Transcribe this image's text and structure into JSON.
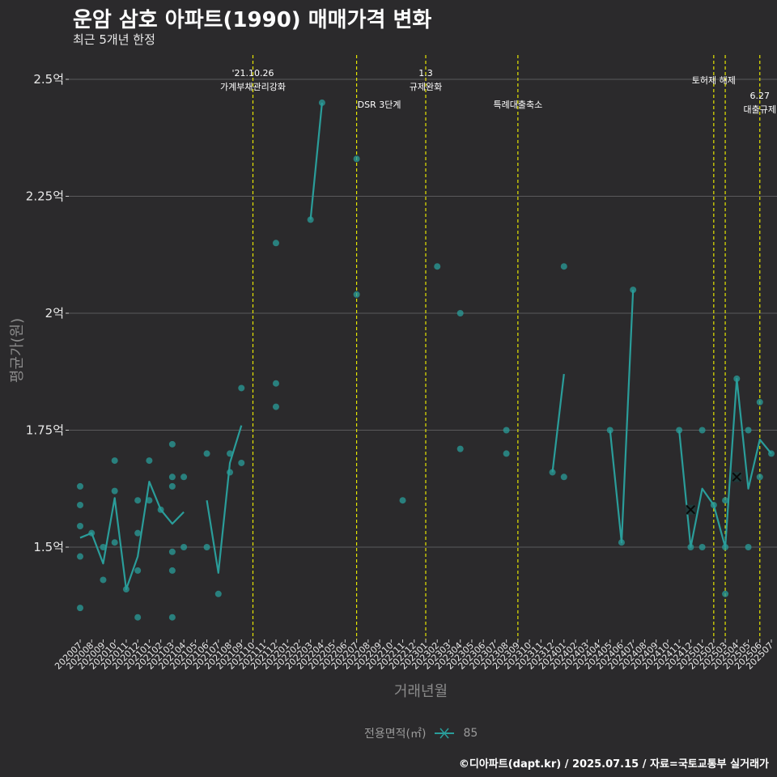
{
  "header": {
    "title": "운암 삼호 아파트(1990) 매매가격 변화",
    "subtitle": "최근 5개년 한정"
  },
  "legend": {
    "title": "전용면적(㎡)",
    "label": "85"
  },
  "caption": "©디아파트(dapt.kr) / 2025.07.15 / 자료=국토교통부 실거래가",
  "colors": {
    "series": "#2a9d9a",
    "vline": "#e6e600",
    "grid": "#5a595b",
    "background": "#2b2a2c"
  },
  "chart_data": {
    "type": "line",
    "title": "운암 삼호 아파트(1990) 매매가격 변화",
    "xlabel": "거래년월",
    "ylabel": "평균가(원)",
    "ylim": [
      1.3,
      2.55
    ],
    "y_ticks": [
      {
        "value": 1.5,
        "label": "1.5억"
      },
      {
        "value": 1.75,
        "label": "1.75억"
      },
      {
        "value": 2.0,
        "label": "2억"
      },
      {
        "value": 2.25,
        "label": "2.25억"
      },
      {
        "value": 2.5,
        "label": "2.5억"
      }
    ],
    "x_categories": [
      "202007",
      "202008",
      "202009",
      "202010",
      "202011",
      "202012",
      "202101",
      "202102",
      "202103",
      "202104",
      "202105",
      "202106",
      "202107",
      "202108",
      "202109",
      "202110",
      "202111",
      "202112",
      "202201",
      "202202",
      "202203",
      "202204",
      "202205",
      "202206",
      "202207",
      "202208",
      "202209",
      "202210",
      "202211",
      "202212",
      "202301",
      "202302",
      "202303",
      "202304",
      "202305",
      "202306",
      "202307",
      "202308",
      "202309",
      "202310",
      "202311",
      "202312",
      "202401",
      "202402",
      "202403",
      "202404",
      "202405",
      "202406",
      "202407",
      "202408",
      "202409",
      "202410",
      "202411",
      "202412",
      "202501",
      "202502",
      "202503",
      "202504",
      "202505",
      "202506",
      "202507"
    ],
    "series": [
      {
        "name": "85",
        "line_segments": [
          [
            [
              "202007",
              1.52
            ],
            [
              "202008",
              1.53
            ],
            [
              "202009",
              1.465
            ],
            [
              "202010",
              1.605
            ],
            [
              "202011",
              1.41
            ],
            [
              "202012",
              1.48
            ],
            [
              "202101",
              1.64
            ],
            [
              "202102",
              1.58
            ],
            [
              "202103",
              1.55
            ],
            [
              "202104",
              1.575
            ]
          ],
          [
            [
              "202106",
              1.6
            ],
            [
              "202107",
              1.445
            ],
            [
              "202108",
              1.68
            ],
            [
              "202109",
              1.76
            ]
          ],
          [
            [
              "202203",
              2.2
            ],
            [
              "202204",
              2.45
            ]
          ],
          [
            [
              "202312",
              1.66
            ],
            [
              "202401",
              1.87
            ]
          ],
          [
            [
              "202405",
              1.75
            ],
            [
              "202406",
              1.51
            ],
            [
              "202407",
              2.05
            ]
          ],
          [
            [
              "202411",
              1.75
            ],
            [
              "202412",
              1.5
            ],
            [
              "202501",
              1.625
            ],
            [
              "202502",
              1.59
            ],
            [
              "202503",
              1.5
            ],
            [
              "202504",
              1.86
            ],
            [
              "202505",
              1.625
            ],
            [
              "202506",
              1.73
            ],
            [
              "202507",
              1.7
            ]
          ]
        ],
        "points": [
          [
            "202007",
            1.63
          ],
          [
            "202007",
            1.59
          ],
          [
            "202007",
            1.545
          ],
          [
            "202007",
            1.48
          ],
          [
            "202007",
            1.37
          ],
          [
            "202008",
            1.53
          ],
          [
            "202009",
            1.5
          ],
          [
            "202009",
            1.43
          ],
          [
            "202010",
            1.685
          ],
          [
            "202010",
            1.62
          ],
          [
            "202010",
            1.51
          ],
          [
            "202011",
            1.41
          ],
          [
            "202012",
            1.6
          ],
          [
            "202012",
            1.53
          ],
          [
            "202012",
            1.45
          ],
          [
            "202012",
            1.35
          ],
          [
            "202101",
            1.685
          ],
          [
            "202101",
            1.6
          ],
          [
            "202102",
            1.58
          ],
          [
            "202103",
            1.72
          ],
          [
            "202103",
            1.65
          ],
          [
            "202103",
            1.63
          ],
          [
            "202103",
            1.49
          ],
          [
            "202103",
            1.45
          ],
          [
            "202103",
            1.35
          ],
          [
            "202104",
            1.65
          ],
          [
            "202104",
            1.5
          ],
          [
            "202106",
            1.7
          ],
          [
            "202106",
            1.5
          ],
          [
            "202107",
            1.4
          ],
          [
            "202108",
            1.7
          ],
          [
            "202108",
            1.66
          ],
          [
            "202109",
            1.84
          ],
          [
            "202109",
            1.68
          ],
          [
            "202112",
            2.15
          ],
          [
            "202112",
            1.85
          ],
          [
            "202112",
            1.8
          ],
          [
            "202203",
            2.2
          ],
          [
            "202204",
            2.45
          ],
          [
            "202207",
            2.33
          ],
          [
            "202207",
            2.04
          ],
          [
            "202211",
            1.6
          ],
          [
            "202302",
            2.1
          ],
          [
            "202304",
            2.0
          ],
          [
            "202304",
            1.71
          ],
          [
            "202308",
            1.75
          ],
          [
            "202308",
            1.7
          ],
          [
            "202312",
            1.66
          ],
          [
            "202401",
            2.1
          ],
          [
            "202401",
            1.65
          ],
          [
            "202405",
            1.75
          ],
          [
            "202406",
            1.51
          ],
          [
            "202407",
            2.05
          ],
          [
            "202411",
            1.75
          ],
          [
            "202412",
            1.5
          ],
          [
            "202501",
            1.75
          ],
          [
            "202501",
            1.5
          ],
          [
            "202502",
            1.59
          ],
          [
            "202503",
            1.6
          ],
          [
            "202503",
            1.4
          ],
          [
            "202503",
            1.5
          ],
          [
            "202504",
            1.86
          ],
          [
            "202505",
            1.75
          ],
          [
            "202505",
            1.5
          ],
          [
            "202506",
            1.81
          ],
          [
            "202506",
            1.65
          ],
          [
            "202507",
            1.7
          ]
        ],
        "crosses": [
          [
            "202412",
            1.58
          ],
          [
            "202504",
            1.65
          ]
        ]
      }
    ],
    "events": [
      {
        "x": "202110",
        "lines": [
          "'21.10.26",
          "가계부채관리강화"
        ]
      },
      {
        "x": "202207",
        "lines": [
          "DSR 3단계"
        ]
      },
      {
        "x": "202301",
        "lines": [
          "1.3",
          "규제완화"
        ]
      },
      {
        "x": "202309",
        "lines": [
          "특례대출축소"
        ]
      },
      {
        "x": "202502",
        "lines": [
          "토허제 해제"
        ]
      },
      {
        "x": "202503",
        "lines": []
      },
      {
        "x": "202506",
        "lines": [
          "6.27",
          "대출규제"
        ]
      }
    ]
  }
}
